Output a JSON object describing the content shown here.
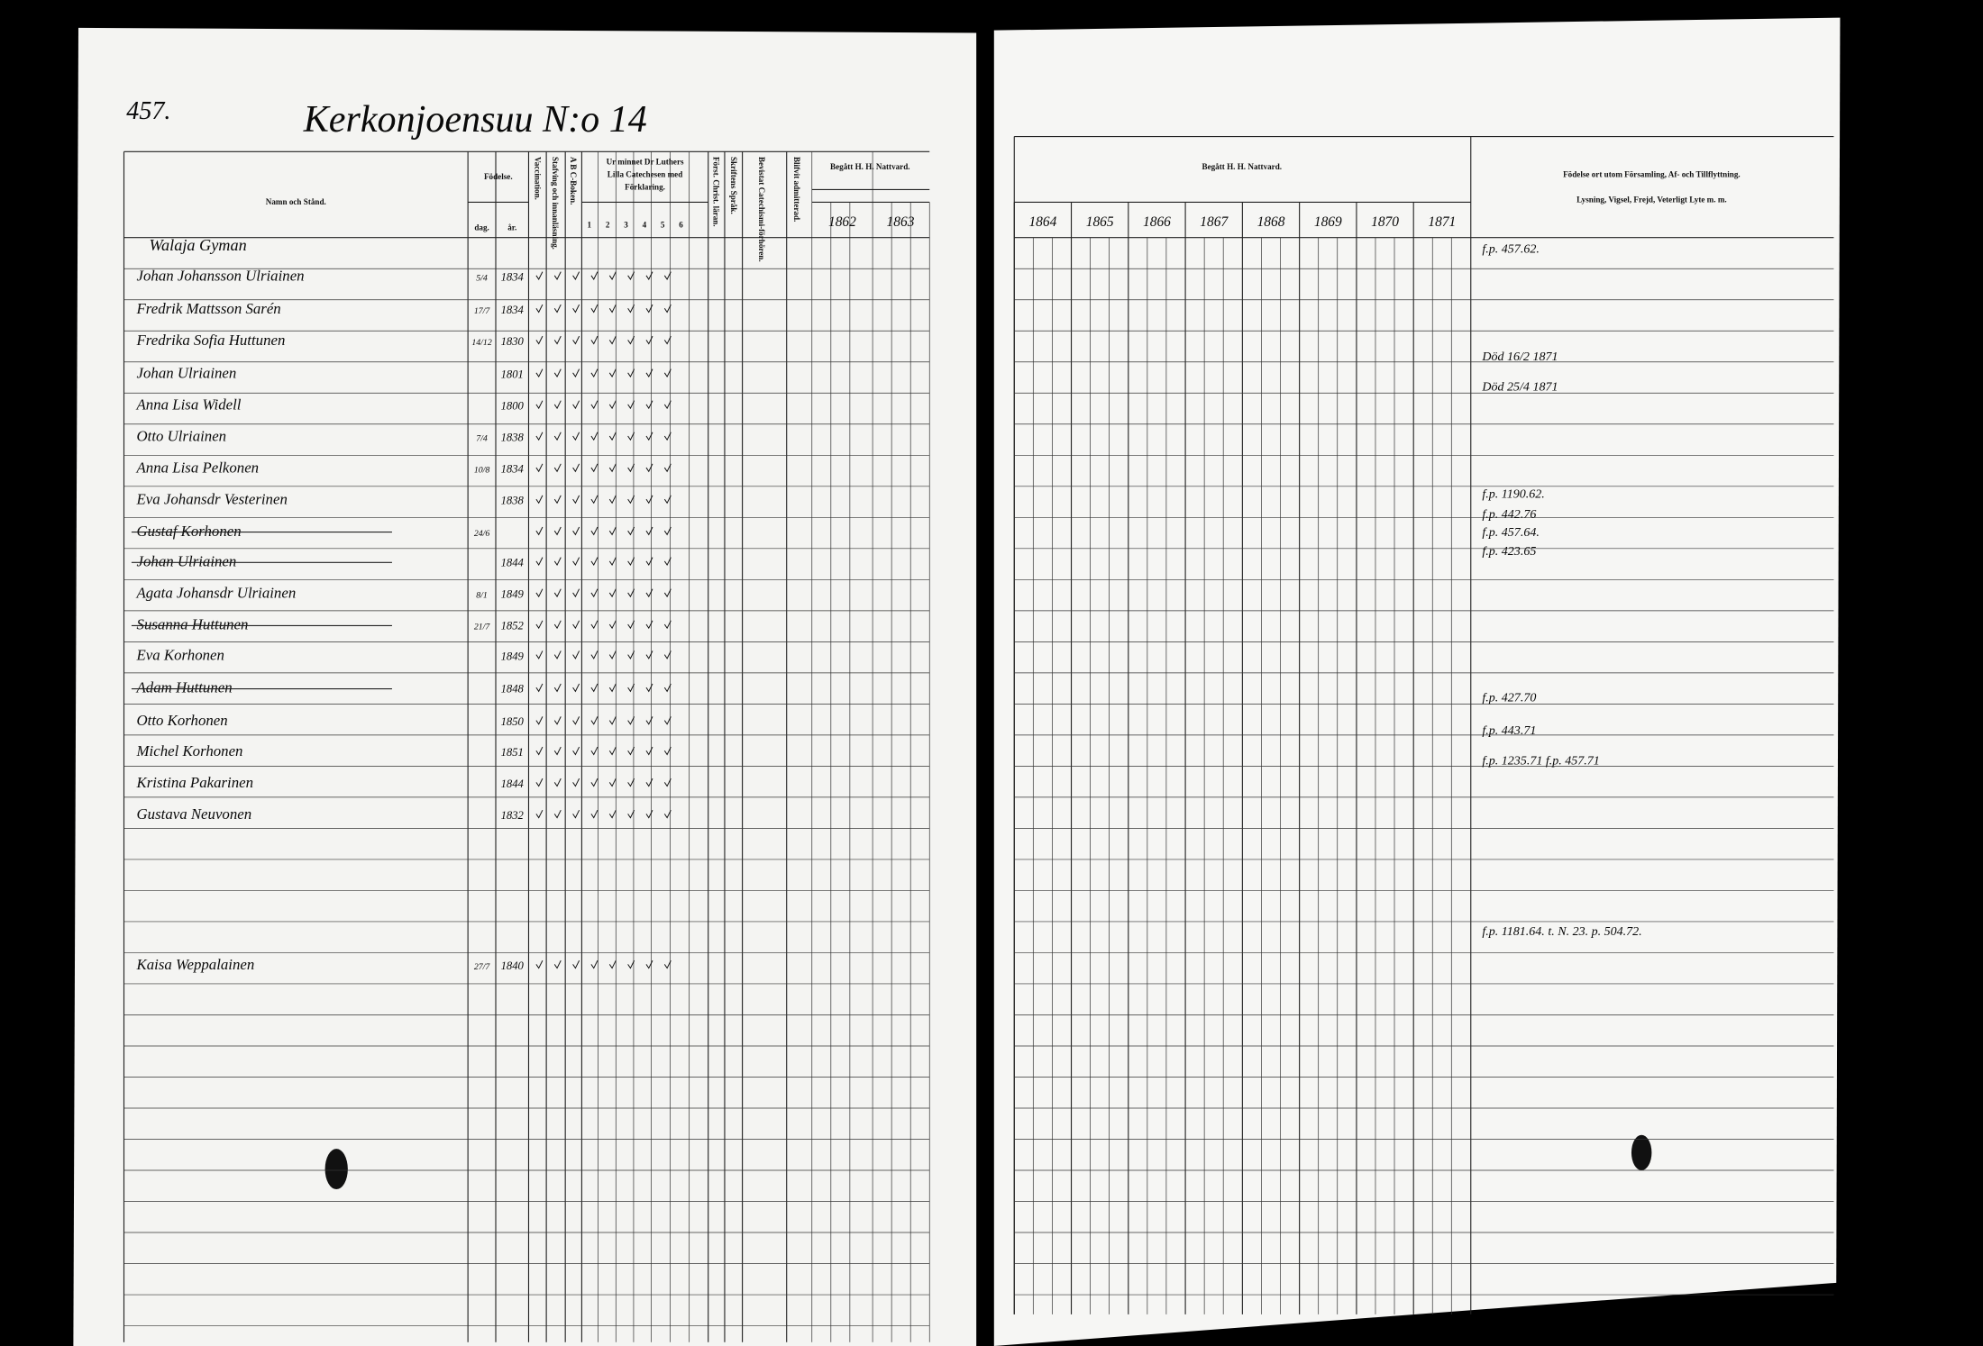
{
  "header": {
    "page_number": "457.",
    "title": "Kerkonjoensuu N:o 14"
  },
  "left_columns": {
    "name": "Namn och Stånd.",
    "birth": "Födelse.",
    "day": "dag.",
    "year": "år.",
    "vaccination": "Vaccination.",
    "reading": "Stafving och innanläsning.",
    "abc": "A B C-Boken.",
    "catechism": [
      "Ur minnet Dr Luthers",
      "Lilla Catechesen med",
      "Förklaring."
    ],
    "catechism_parts": [
      "1",
      "2",
      "3",
      "4",
      "5",
      "6"
    ],
    "christianity": "Först. Christ. läran.",
    "scripture": "Skriftens Språk.",
    "catechism_hearing": "Bevistat Catechismi-förhören.",
    "admitted": "Blifvit admitterad.",
    "communion": "Begått H. H. Nattvard.",
    "communion_years": [
      "1862",
      "1863"
    ]
  },
  "right_columns": {
    "communion": "Begått H. H. Nattvard.",
    "years": [
      "1864",
      "1865",
      "1866",
      "1867",
      "1868",
      "1869",
      "1870",
      "1871"
    ],
    "remarks": [
      "Födelse ort utom Församling, Af- och Tillflyttning.",
      "Lysning, Vigsel, Frejd, Veterligt Lyte m. m."
    ]
  },
  "rows": [
    {
      "name": "Walaja Gyman"
    },
    {
      "name": "Johan Johansson Ulriainen",
      "day": "5/4",
      "year": "1834"
    },
    {
      "name": "Fredrik Mattsson Sarén",
      "day": "17/7",
      "year": "1834"
    },
    {
      "name": "Fredrika Sofia Huttunen",
      "day": "14/12",
      "year": "1830"
    },
    {
      "name": "Johan Ulriainen",
      "year": "1801"
    },
    {
      "name": "Anna Lisa Widell",
      "year": "1800"
    },
    {
      "name": "Otto Ulriainen",
      "day": "7/4",
      "year": "1838"
    },
    {
      "name": "Anna Lisa Pelkonen",
      "day": "10/8",
      "year": "1834"
    },
    {
      "name": "Eva Johansdr Vesterinen",
      "year": "1838"
    },
    {
      "name": "Gustaf Korhonen",
      "day": "24/6"
    },
    {
      "name": "Johan Ulriainen",
      "year": "1844"
    },
    {
      "name": "Agata Johansdr Ulriainen",
      "day": "8/1",
      "year": "1849"
    },
    {
      "name": "Susanna Huttunen",
      "day": "21/7",
      "year": "1852"
    },
    {
      "name": "Eva Korhonen",
      "year": "1849"
    },
    {
      "name": "Adam Huttunen",
      "year": "1848"
    },
    {
      "name": "Otto Korhonen",
      "year": "1850"
    },
    {
      "name": "Michel Korhonen",
      "year": "1851"
    },
    {
      "name": "Kristina Pakarinen",
      "year": "1844"
    },
    {
      "name": "Gustava Neuvonen",
      "year": "1832"
    },
    {
      "name": "Kaisa Weppalainen",
      "day": "27/7",
      "year": "1840"
    }
  ],
  "remarks": [
    "f.p. 457.62.",
    "Död 16/2 1871",
    "Död 25/4 1871",
    "f.p. 1190.62.",
    "f.p. 442.76",
    "f.p. 457.64.",
    "f.p. 423.65",
    "f.p. 427.70",
    "f.p. 443.71",
    "f.p. 1235.71  f.p. 457.71",
    "f.p. 1181.64. t. N. 23. p. 504.72."
  ]
}
